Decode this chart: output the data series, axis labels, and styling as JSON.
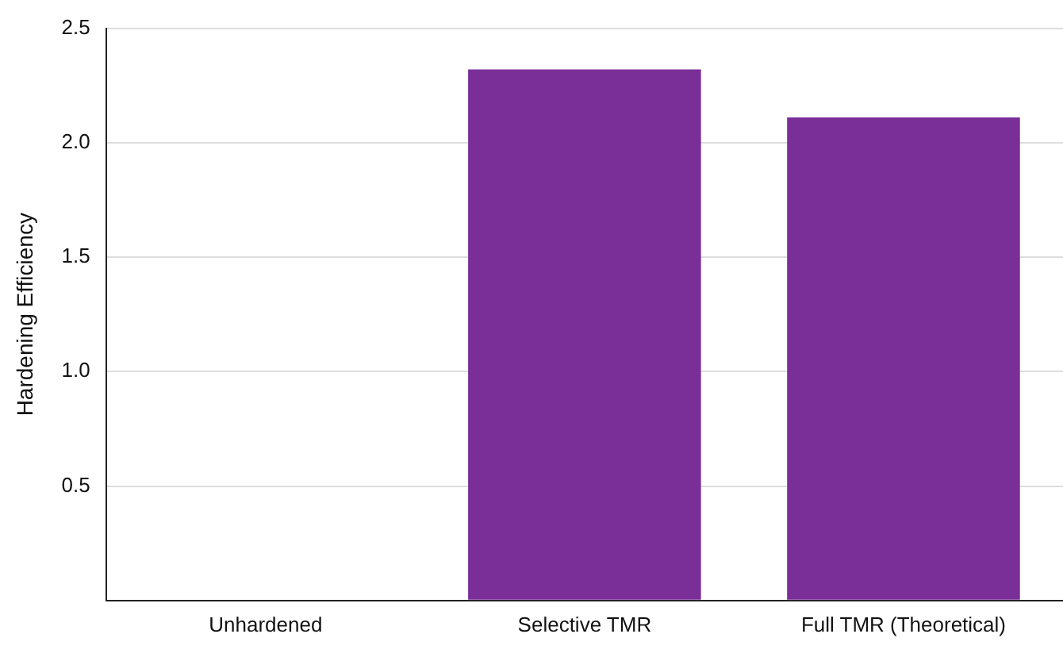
{
  "chart_data": {
    "type": "bar",
    "ylabel": "Hardening Efficiency",
    "categories": [
      "Unhardened",
      "Selective TMR",
      "Full TMR (Theoretical)"
    ],
    "values": [
      0,
      2.32,
      2.11
    ],
    "color": "#7a2e98",
    "ylim": [
      0,
      2.5
    ],
    "yticks": [
      {
        "value": 0,
        "label": null
      },
      0.5,
      {
        "value": 1,
        "label": "1.0"
      },
      1.5,
      {
        "value": 2,
        "label": "2.0"
      },
      2.5
    ],
    "grid": "y",
    "legend": false
  }
}
